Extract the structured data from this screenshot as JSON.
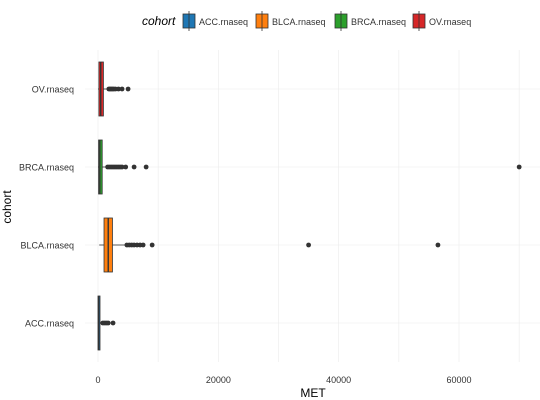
{
  "chart_data": {
    "type": "boxplot",
    "orientation": "horizontal",
    "xlabel": "MET",
    "ylabel": "cohort",
    "xlim": [
      -1000,
      73000
    ],
    "x_ticks": [
      0,
      20000,
      40000,
      60000
    ],
    "x_tick_labels": [
      "0",
      "20000",
      "40000",
      "60000"
    ],
    "grid": true,
    "legend": {
      "title": "cohort",
      "position": "top",
      "entries": [
        "ACC.rnaseq",
        "BLCA.rnaseq",
        "BRCA.rnaseq",
        "OV.rnaseq"
      ]
    },
    "categories": [
      "ACC.rnaseq",
      "BLCA.rnaseq",
      "BRCA.rnaseq",
      "OV.rnaseq"
    ],
    "colors": [
      "#1f77b4",
      "#ff7f0e",
      "#2ca02c",
      "#d62728"
    ],
    "series": [
      {
        "name": "ACC.rnaseq",
        "min": 0,
        "q1": 0,
        "median": 100,
        "q3": 250,
        "max": 500,
        "outliers": [
          800,
          1100,
          1400,
          1700,
          2500
        ]
      },
      {
        "name": "BLCA.rnaseq",
        "min": 200,
        "q1": 1000,
        "median": 1700,
        "q3": 2400,
        "max": 4500,
        "outliers": [
          4800,
          5200,
          5600,
          6000,
          6500,
          7000,
          7500,
          9000,
          35000,
          56500
        ]
      },
      {
        "name": "BRCA.rnaseq",
        "min": 0,
        "q1": 100,
        "median": 300,
        "q3": 700,
        "max": 1400,
        "outliers": [
          1600,
          1900,
          2200,
          2500,
          2800,
          3100,
          3400,
          3700,
          4000,
          4600,
          6000,
          8000,
          70000
        ]
      },
      {
        "name": "OV.rnaseq",
        "min": 0,
        "q1": 150,
        "median": 450,
        "q3": 900,
        "max": 1700,
        "outliers": [
          1800,
          2000,
          2200,
          2400,
          2600,
          2900,
          3400,
          4000,
          5000
        ]
      }
    ]
  }
}
